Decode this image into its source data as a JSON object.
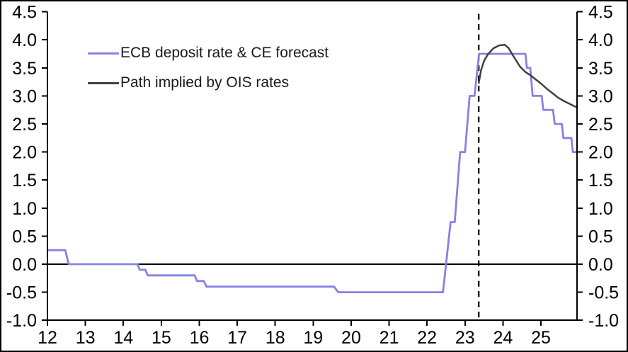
{
  "chart_data": {
    "type": "line",
    "title": "",
    "legend_position": "top-left-inside",
    "grid": false,
    "background_color": "#ffffff",
    "axis_color": "#000000",
    "legend": [
      {
        "label": "ECB deposit rate & CE forecast",
        "color": "#8583e3"
      },
      {
        "label": "Path implied by OIS rates",
        "color": "#404040"
      }
    ],
    "xlim": [
      12,
      25.95
    ],
    "ylim": [
      -1.0,
      4.5
    ],
    "x_ticks": {
      "values": [
        12,
        13,
        14,
        15,
        16,
        17,
        18,
        19,
        20,
        21,
        22,
        23,
        24,
        25
      ],
      "labels": [
        "12",
        "13",
        "14",
        "15",
        "16",
        "17",
        "18",
        "19",
        "20",
        "21",
        "22",
        "23",
        "24",
        "25"
      ]
    },
    "y_ticks": {
      "values": [
        -1.0,
        -0.5,
        0.0,
        0.5,
        1.0,
        1.5,
        2.0,
        2.5,
        3.0,
        3.5,
        4.0,
        4.5
      ],
      "labels": [
        "-1.0",
        "-0.5",
        "0.0",
        "0.5",
        "1.0",
        "1.5",
        "2.0",
        "2.5",
        "3.0",
        "3.5",
        "4.0",
        "4.5"
      ],
      "sides": [
        "left",
        "right"
      ]
    },
    "zero_line_y": 0.0,
    "forecast_divider": {
      "x": 23.36,
      "style": "dashed",
      "color": "#000000"
    },
    "series": [
      {
        "name": "ECB deposit rate & CE forecast",
        "color": "#8583e3",
        "width": 2.8,
        "points": [
          [
            12.0,
            0.25
          ],
          [
            12.47,
            0.25
          ],
          [
            12.56,
            0.0
          ],
          [
            14.37,
            0.0
          ],
          [
            14.43,
            -0.1
          ],
          [
            14.58,
            -0.1
          ],
          [
            14.64,
            -0.2
          ],
          [
            15.88,
            -0.2
          ],
          [
            15.94,
            -0.3
          ],
          [
            16.12,
            -0.3
          ],
          [
            16.19,
            -0.4
          ],
          [
            19.55,
            -0.4
          ],
          [
            19.66,
            -0.5
          ],
          [
            22.42,
            -0.5
          ],
          [
            22.62,
            0.75
          ],
          [
            22.73,
            0.75
          ],
          [
            22.87,
            2.0
          ],
          [
            23.0,
            2.0
          ],
          [
            23.12,
            3.0
          ],
          [
            23.25,
            3.0
          ],
          [
            23.37,
            3.75
          ],
          [
            24.59,
            3.75
          ],
          [
            24.63,
            3.5
          ],
          [
            24.72,
            3.5
          ],
          [
            24.78,
            3.0
          ],
          [
            25.02,
            3.0
          ],
          [
            25.06,
            2.75
          ],
          [
            25.32,
            2.75
          ],
          [
            25.36,
            2.5
          ],
          [
            25.55,
            2.5
          ],
          [
            25.59,
            2.25
          ],
          [
            25.8,
            2.25
          ],
          [
            25.84,
            2.0
          ],
          [
            25.95,
            2.0
          ]
        ]
      },
      {
        "name": "Path implied by OIS rates",
        "color": "#404040",
        "width": 2.5,
        "points": [
          [
            23.36,
            3.22
          ],
          [
            23.42,
            3.45
          ],
          [
            23.5,
            3.62
          ],
          [
            23.6,
            3.74
          ],
          [
            23.75,
            3.85
          ],
          [
            23.9,
            3.9
          ],
          [
            24.05,
            3.91
          ],
          [
            24.15,
            3.85
          ],
          [
            24.3,
            3.68
          ],
          [
            24.45,
            3.52
          ],
          [
            24.6,
            3.42
          ],
          [
            24.72,
            3.37
          ],
          [
            24.85,
            3.3
          ],
          [
            25.0,
            3.22
          ],
          [
            25.15,
            3.13
          ],
          [
            25.3,
            3.05
          ],
          [
            25.45,
            2.97
          ],
          [
            25.6,
            2.91
          ],
          [
            25.75,
            2.86
          ],
          [
            25.93,
            2.8
          ]
        ]
      }
    ]
  }
}
